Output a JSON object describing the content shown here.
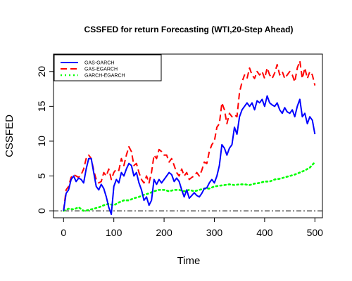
{
  "chart_data": {
    "type": "line",
    "title": "CSSFED for return Forecasting (WTI,20-Step Ahead)",
    "xlabel": "Time",
    "ylabel": "CSSFED",
    "xlim": [
      -20,
      515
    ],
    "ylim": [
      -1,
      22.5
    ],
    "xticks": [
      0,
      100,
      200,
      300,
      400,
      500
    ],
    "yticks": [
      0,
      5,
      10,
      15,
      20
    ],
    "grid": false,
    "legend_position": "top-left",
    "reference_line": {
      "y": 0,
      "style": "dashdot",
      "color": "#000000"
    },
    "series": [
      {
        "name": "GAS-GARCH",
        "color": "#0000ff",
        "dash": "solid",
        "x": [
          0,
          5,
          10,
          15,
          20,
          25,
          30,
          35,
          40,
          45,
          50,
          55,
          60,
          65,
          70,
          75,
          80,
          85,
          90,
          95,
          100,
          105,
          110,
          115,
          120,
          125,
          130,
          135,
          140,
          145,
          150,
          155,
          160,
          165,
          170,
          175,
          180,
          185,
          190,
          195,
          200,
          205,
          210,
          215,
          220,
          225,
          230,
          235,
          240,
          245,
          250,
          255,
          260,
          265,
          270,
          275,
          280,
          285,
          290,
          295,
          300,
          305,
          310,
          315,
          320,
          325,
          330,
          335,
          340,
          345,
          350,
          355,
          360,
          365,
          370,
          375,
          380,
          385,
          390,
          395,
          400,
          405,
          410,
          415,
          420,
          425,
          430,
          435,
          440,
          445,
          450,
          455,
          460,
          465,
          470,
          475,
          480,
          485,
          490,
          495,
          500
        ],
        "values": [
          0.0,
          2.5,
          3.0,
          4.5,
          5.0,
          4.2,
          4.7,
          4.5,
          4.0,
          6.0,
          7.5,
          7.5,
          5.5,
          3.5,
          3.0,
          3.8,
          3.2,
          2.0,
          0.5,
          -0.5,
          3.5,
          4.5,
          4.0,
          5.5,
          5.0,
          6.0,
          6.8,
          6.5,
          5.0,
          5.5,
          4.0,
          3.0,
          1.5,
          2.0,
          0.8,
          1.5,
          4.5,
          3.8,
          4.5,
          4.0,
          4.5,
          5.0,
          5.5,
          5.2,
          4.2,
          4.7,
          4.2,
          3.0,
          2.0,
          3.0,
          1.8,
          2.2,
          2.6,
          2.2,
          2.0,
          2.5,
          3.2,
          3.3,
          4.0,
          4.5,
          4.0,
          5.0,
          6.5,
          9.5,
          9.0,
          8.0,
          9.0,
          9.5,
          12.0,
          11.0,
          13.5,
          14.5,
          15.0,
          15.5,
          15.0,
          15.5,
          14.5,
          15.8,
          15.5,
          16.0,
          15.0,
          16.5,
          15.5,
          15.2,
          15.0,
          15.5,
          14.5,
          14.0,
          14.8,
          14.2,
          14.0,
          14.5,
          13.5,
          15.0,
          16.0,
          13.5,
          14.0,
          12.5,
          13.5,
          13.0,
          11.0
        ]
      },
      {
        "name": "GAS-EGARCH",
        "color": "#ff0000",
        "dash": "longdash",
        "x": [
          0,
          5,
          10,
          15,
          20,
          25,
          30,
          35,
          40,
          45,
          50,
          55,
          60,
          65,
          70,
          75,
          80,
          85,
          90,
          95,
          100,
          105,
          110,
          115,
          120,
          125,
          130,
          135,
          140,
          145,
          150,
          155,
          160,
          165,
          170,
          175,
          180,
          185,
          190,
          195,
          200,
          205,
          210,
          215,
          220,
          225,
          230,
          235,
          240,
          245,
          250,
          255,
          260,
          265,
          270,
          275,
          280,
          285,
          290,
          295,
          300,
          305,
          310,
          315,
          320,
          325,
          330,
          335,
          340,
          345,
          350,
          355,
          360,
          365,
          370,
          375,
          380,
          385,
          390,
          395,
          400,
          405,
          410,
          415,
          420,
          425,
          430,
          435,
          440,
          445,
          450,
          455,
          460,
          465,
          470,
          475,
          480,
          485,
          490,
          495,
          500
        ],
        "values": [
          0.0,
          3.0,
          3.5,
          4.8,
          5.2,
          5.0,
          4.8,
          5.2,
          6.0,
          7.5,
          8.0,
          7.5,
          5.8,
          4.5,
          4.0,
          4.2,
          5.5,
          5.0,
          6.0,
          4.5,
          5.5,
          6.0,
          5.8,
          7.5,
          6.5,
          8.0,
          9.2,
          8.5,
          6.5,
          6.8,
          5.5,
          4.5,
          4.0,
          5.0,
          4.0,
          5.5,
          8.0,
          7.5,
          8.8,
          8.5,
          8.0,
          8.0,
          7.0,
          7.5,
          6.5,
          5.5,
          5.0,
          6.0,
          5.0,
          5.5,
          4.5,
          4.8,
          5.0,
          5.5,
          5.0,
          5.8,
          7.0,
          6.8,
          8.5,
          9.5,
          10.0,
          12.0,
          12.5,
          15.5,
          14.5,
          12.5,
          14.0,
          13.5,
          13.8,
          13.5,
          17.0,
          18.5,
          19.5,
          19.0,
          20.5,
          19.5,
          19.0,
          20.0,
          19.5,
          20.0,
          19.0,
          20.5,
          19.5,
          19.0,
          19.8,
          21.0,
          19.5,
          20.0,
          19.0,
          19.5,
          20.0,
          19.5,
          18.5,
          20.5,
          21.5,
          19.0,
          20.5,
          19.0,
          20.0,
          19.5,
          18.0
        ]
      },
      {
        "name": "GARCH-EGARCH",
        "color": "#00ff00",
        "dash": "dotted",
        "x": [
          0,
          10,
          20,
          30,
          40,
          50,
          60,
          70,
          80,
          90,
          100,
          110,
          120,
          130,
          140,
          150,
          160,
          170,
          180,
          190,
          200,
          210,
          220,
          230,
          240,
          250,
          260,
          270,
          280,
          290,
          300,
          310,
          320,
          330,
          340,
          350,
          360,
          370,
          380,
          390,
          400,
          410,
          420,
          430,
          440,
          450,
          460,
          470,
          480,
          490,
          500
        ],
        "values": [
          0.0,
          0.3,
          0.2,
          0.5,
          0.0,
          0.1,
          0.3,
          0.5,
          0.8,
          1.0,
          0.8,
          1.2,
          1.5,
          1.5,
          1.8,
          2.0,
          2.3,
          2.5,
          2.8,
          3.0,
          3.0,
          2.8,
          3.0,
          3.0,
          2.8,
          3.0,
          2.8,
          3.0,
          3.2,
          3.2,
          3.5,
          3.6,
          3.7,
          3.8,
          3.7,
          3.8,
          3.8,
          3.7,
          3.9,
          4.0,
          4.2,
          4.2,
          4.5,
          4.6,
          4.8,
          5.0,
          5.2,
          5.5,
          5.8,
          6.2,
          7.0
        ]
      }
    ]
  }
}
